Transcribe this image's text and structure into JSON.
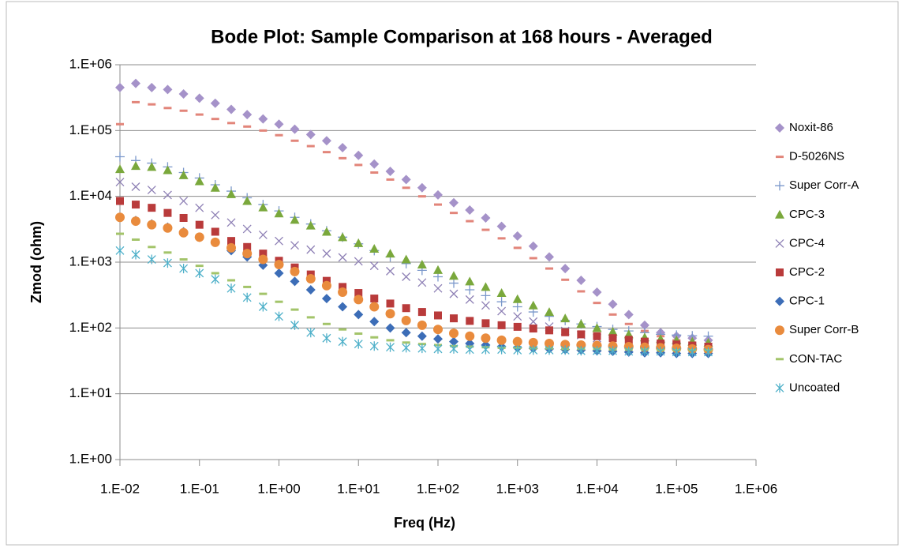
{
  "chart_data": {
    "type": "scatter",
    "title": "Bode Plot: Sample Comparison at 168 hours - Averaged",
    "xlabel": "Freq (Hz)",
    "ylabel": "Zmod (ohm)",
    "xscale": "log",
    "yscale": "log",
    "grid": true,
    "legend": "right",
    "xlim": [
      0.01,
      1000000
    ],
    "ylim": [
      1,
      1000000
    ],
    "xticks": [
      {
        "value": 0.01,
        "label": "1.E-02"
      },
      {
        "value": 0.1,
        "label": "1.E-01"
      },
      {
        "value": 1,
        "label": "1.E+00"
      },
      {
        "value": 10,
        "label": "1.E+01"
      },
      {
        "value": 100,
        "label": "1.E+02"
      },
      {
        "value": 1000,
        "label": "1.E+03"
      },
      {
        "value": 10000,
        "label": "1.E+04"
      },
      {
        "value": 100000,
        "label": "1.E+05"
      },
      {
        "value": 1000000,
        "label": "1.E+06"
      }
    ],
    "yticks": [
      {
        "value": 1,
        "label": "1.E+00"
      },
      {
        "value": 10,
        "label": "1.E+01"
      },
      {
        "value": 100,
        "label": "1.E+02"
      },
      {
        "value": 1000,
        "label": "1.E+03"
      },
      {
        "value": 10000,
        "label": "1.E+04"
      },
      {
        "value": 100000,
        "label": "1.E+05"
      },
      {
        "value": 1000000,
        "label": "1.E+06"
      }
    ],
    "x": [
      0.01,
      0.0158,
      0.0251,
      0.0398,
      0.0631,
      0.1,
      0.158,
      0.251,
      0.398,
      0.631,
      1,
      1.58,
      2.51,
      3.98,
      6.31,
      10,
      15.8,
      25.1,
      39.8,
      63.1,
      100,
      158,
      251,
      398,
      631,
      1000,
      1580,
      2510,
      3980,
      6310,
      10000,
      15800,
      25100,
      39800,
      63100,
      100000,
      158000,
      251000
    ],
    "series": [
      {
        "name": "Noxit-86",
        "color": "#a592c9",
        "marker": "diamond",
        "values": [
          450000,
          520000,
          450000,
          420000,
          360000,
          310000,
          260000,
          210000,
          175000,
          150000,
          125000,
          105000,
          87000,
          70000,
          55000,
          42000,
          31000,
          24000,
          18000,
          13500,
          10500,
          8000,
          6200,
          4700,
          3500,
          2500,
          1750,
          1200,
          800,
          530,
          350,
          230,
          160,
          110,
          85,
          75,
          70,
          65
        ]
      },
      {
        "name": "D-5026NS",
        "color": "#e2857a",
        "marker": "dash",
        "values": [
          125000,
          270000,
          250000,
          220000,
          200000,
          175000,
          150000,
          130000,
          115000,
          100000,
          85000,
          70000,
          58000,
          47000,
          38000,
          30000,
          23000,
          18000,
          13500,
          10000,
          7500,
          5600,
          4200,
          3100,
          2300,
          1650,
          1150,
          800,
          540,
          360,
          240,
          160,
          115,
          90,
          75,
          65,
          60,
          55
        ]
      },
      {
        "name": "Super Corr-A",
        "color": "#7b98cb",
        "marker": "plus",
        "values": [
          40000,
          35000,
          32000,
          28000,
          23000,
          19000,
          15000,
          12000,
          9500,
          7500,
          6000,
          4800,
          3800,
          3000,
          2400,
          1900,
          1500,
          1200,
          950,
          750,
          600,
          480,
          380,
          310,
          250,
          210,
          175,
          150,
          130,
          115,
          105,
          95,
          90,
          85,
          80,
          78,
          76,
          75
        ]
      },
      {
        "name": "CPC-3",
        "color": "#7aa83c",
        "marker": "triangle",
        "values": [
          26000,
          29000,
          28000,
          25000,
          21000,
          17000,
          13500,
          10800,
          8500,
          6800,
          5500,
          4400,
          3600,
          2900,
          2400,
          1950,
          1600,
          1350,
          1100,
          920,
          760,
          620,
          510,
          420,
          340,
          275,
          220,
          175,
          140,
          115,
          100,
          88,
          80,
          72,
          68,
          65,
          62,
          60
        ]
      },
      {
        "name": "CPC-4",
        "color": "#8e80b5",
        "marker": "cross",
        "values": [
          16500,
          14000,
          12500,
          10500,
          8500,
          6700,
          5200,
          4000,
          3200,
          2600,
          2100,
          1800,
          1550,
          1350,
          1180,
          1030,
          880,
          730,
          600,
          490,
          400,
          330,
          270,
          220,
          180,
          150,
          125,
          105,
          90,
          78,
          70,
          64,
          60,
          57,
          55,
          53,
          52,
          51
        ]
      },
      {
        "name": "CPC-2",
        "color": "#b93b3b",
        "marker": "square",
        "values": [
          8500,
          7500,
          6700,
          5600,
          4700,
          3700,
          2900,
          2100,
          1700,
          1350,
          1050,
          830,
          650,
          520,
          420,
          340,
          280,
          235,
          200,
          175,
          155,
          140,
          128,
          118,
          110,
          104,
          98,
          92,
          86,
          80,
          75,
          70,
          66,
          62,
          58,
          56,
          54,
          52
        ]
      },
      {
        "name": "CPC-1",
        "color": "#3c6db7",
        "marker": "diamond",
        "values": [
          4800,
          4300,
          3800,
          3400,
          2900,
          2400,
          2000,
          1500,
          1200,
          900,
          680,
          510,
          380,
          280,
          210,
          160,
          125,
          100,
          85,
          75,
          68,
          62,
          58,
          55,
          52,
          50,
          49,
          48,
          47,
          46,
          45,
          44,
          43,
          42,
          42,
          41,
          41,
          41
        ]
      },
      {
        "name": "Super Corr-B",
        "color": "#e98b3d",
        "marker": "circle",
        "values": [
          4800,
          4200,
          3700,
          3300,
          2800,
          2400,
          2000,
          1650,
          1350,
          1100,
          920,
          720,
          560,
          440,
          350,
          270,
          210,
          165,
          130,
          110,
          95,
          83,
          75,
          70,
          65,
          62,
          60,
          58,
          56,
          55,
          54,
          53,
          52,
          51,
          50,
          49,
          48,
          47
        ]
      },
      {
        "name": "CON-TAC",
        "color": "#a3c46a",
        "marker": "dash",
        "values": [
          2700,
          2200,
          1700,
          1400,
          1100,
          880,
          680,
          530,
          420,
          330,
          250,
          190,
          145,
          115,
          95,
          82,
          72,
          65,
          60,
          57,
          55,
          53,
          52,
          51,
          50,
          50,
          49,
          49,
          48,
          48,
          48,
          47,
          47,
          47,
          46,
          46,
          46,
          46
        ]
      },
      {
        "name": "Uncoated",
        "color": "#4eb0c9",
        "marker": "asterisk",
        "values": [
          1500,
          1300,
          1100,
          970,
          800,
          680,
          550,
          400,
          290,
          210,
          150,
          110,
          85,
          70,
          62,
          57,
          53,
          51,
          50,
          49,
          48,
          48,
          47,
          47,
          47,
          46,
          46,
          46,
          46,
          45,
          45,
          45,
          44,
          44,
          44,
          43,
          43,
          43
        ]
      }
    ]
  }
}
